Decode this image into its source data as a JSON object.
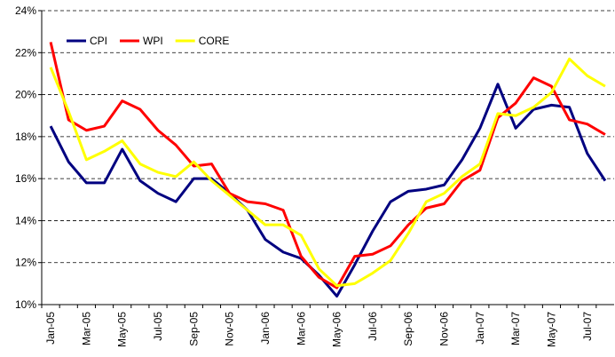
{
  "chart_data": {
    "type": "line",
    "categories": [
      "Jan-05",
      null,
      "Mar-05",
      null,
      "May-05",
      null,
      "Jul-05",
      null,
      "Sep-05",
      null,
      "Nov-05",
      null,
      "Jan-06",
      null,
      "Mar-06",
      null,
      "May-06",
      null,
      "Jul-06",
      null,
      "Sep-06",
      null,
      "Nov-06",
      null,
      "Jan-07",
      null,
      "Mar-07",
      null,
      "May-07",
      null,
      "Jul-07",
      null
    ],
    "series": [
      {
        "name": "CPI",
        "color": "#000080",
        "values": [
          18.5,
          16.8,
          15.8,
          15.8,
          17.4,
          15.9,
          15.3,
          14.9,
          16.0,
          16.0,
          15.3,
          14.5,
          13.1,
          12.5,
          12.2,
          11.4,
          10.4,
          11.9,
          13.5,
          14.9,
          15.4,
          15.5,
          15.7,
          16.9,
          18.4,
          20.5,
          18.4,
          19.3,
          19.5,
          19.4,
          17.2,
          15.9
        ]
      },
      {
        "name": "WPI",
        "color": "#ff0000",
        "values": [
          22.5,
          18.8,
          18.3,
          18.5,
          19.7,
          19.3,
          18.3,
          17.6,
          16.6,
          16.7,
          15.3,
          14.9,
          14.8,
          14.5,
          12.3,
          11.3,
          10.8,
          12.3,
          12.4,
          12.8,
          13.8,
          14.6,
          14.8,
          15.9,
          16.4,
          18.9,
          19.6,
          20.8,
          20.4,
          18.8,
          18.6,
          18.1
        ]
      },
      {
        "name": "CORE",
        "color": "#ffff00",
        "values": [
          21.3,
          19.2,
          16.9,
          17.3,
          17.8,
          16.7,
          16.3,
          16.1,
          16.8,
          15.9,
          15.2,
          14.5,
          13.8,
          13.8,
          13.3,
          11.7,
          10.9,
          11.0,
          11.5,
          12.1,
          13.4,
          14.9,
          15.3,
          16.1,
          16.7,
          19.1,
          19.0,
          19.4,
          20.1,
          21.7,
          20.9,
          20.4
        ]
      }
    ],
    "ylim": [
      10,
      24
    ],
    "yticks": [
      {
        "value": 10,
        "label": "10%"
      },
      {
        "value": 12,
        "label": "12%"
      },
      {
        "value": 14,
        "label": "14%"
      },
      {
        "value": 16,
        "label": "16%"
      },
      {
        "value": 18,
        "label": "18%"
      },
      {
        "value": 20,
        "label": "20%"
      },
      {
        "value": 22,
        "label": "22%"
      },
      {
        "value": 24,
        "label": "24%"
      }
    ],
    "grid": true,
    "legend": "top-left"
  }
}
